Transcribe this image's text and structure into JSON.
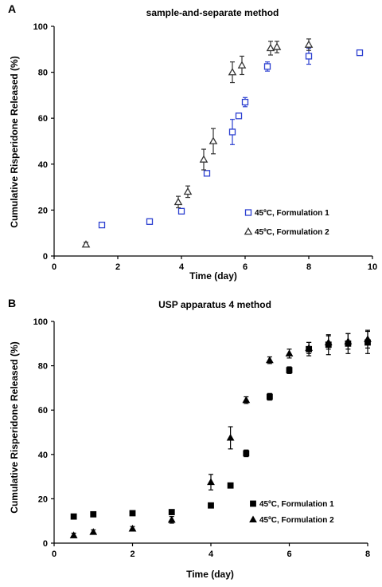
{
  "chart_data": [
    {
      "type": "scatter",
      "panel": "A",
      "title": "sample-and-separate method",
      "xlabel": "Time (day)",
      "ylabel": "Cumulative Risperidone Released (%)",
      "xlim": [
        0,
        10
      ],
      "ylim": [
        0,
        100
      ],
      "xticks": [
        0,
        2,
        4,
        6,
        8,
        10
      ],
      "yticks": [
        0,
        20,
        40,
        60,
        80,
        100
      ],
      "grid": false,
      "legend_position": "bottom-right",
      "series": [
        {
          "name": "45ºC, Formulation 1",
          "marker": "square-open",
          "color": "#2b3fd0",
          "x": [
            1.5,
            3,
            4,
            4.8,
            5.6,
            5.8,
            6,
            6.7,
            8,
            9.6
          ],
          "y": [
            13.5,
            15,
            19.5,
            36,
            54,
            61,
            67,
            82.5,
            87,
            88.5
          ],
          "err": [
            0.8,
            0.8,
            1.0,
            0.8,
            5.5,
            1.0,
            2.0,
            2.0,
            3.5,
            1.0
          ]
        },
        {
          "name": "45ºC, Formulation 2",
          "marker": "triangle-open",
          "color": "#333333",
          "x": [
            1,
            3.9,
            4.2,
            4.7,
            5,
            5.6,
            5.9,
            6.8,
            7,
            8
          ],
          "y": [
            5,
            23.5,
            28,
            42,
            50,
            80,
            83,
            90.5,
            91,
            92
          ],
          "err": [
            1.0,
            2.5,
            2.5,
            4.5,
            5.5,
            4.5,
            4.0,
            3.0,
            2.5,
            2.5
          ]
        }
      ]
    },
    {
      "type": "scatter",
      "panel": "B",
      "title": "USP apparatus 4 method",
      "xlabel": "Time (day)",
      "ylabel": "Cumulative Risperidone Released (%)",
      "xlim": [
        0,
        8
      ],
      "ylim": [
        0,
        100
      ],
      "xticks": [
        0,
        2,
        4,
        6,
        8
      ],
      "yticks": [
        0,
        20,
        40,
        60,
        80,
        100
      ],
      "grid": false,
      "legend_position": "bottom-right",
      "series": [
        {
          "name": "45ºC, Formulation 1",
          "marker": "square-filled",
          "color": "#000000",
          "x": [
            0.5,
            1,
            2,
            3,
            4,
            4.5,
            4.9,
            5.5,
            6,
            6.5,
            7,
            7.5,
            8
          ],
          "y": [
            12,
            13,
            13.5,
            14,
            17,
            26,
            40.5,
            66,
            78,
            87.5,
            89.5,
            90,
            90.5
          ],
          "err": [
            0.8,
            0.8,
            0.8,
            0.8,
            0.8,
            0.8,
            1.5,
            1.5,
            1.5,
            3.0,
            4.5,
            4.5,
            5.0
          ]
        },
        {
          "name": "45ºC, Formulation 2",
          "marker": "triangle-filled",
          "color": "#000000",
          "x": [
            0.5,
            1,
            2,
            3,
            4,
            4.5,
            4.9,
            5.5,
            6,
            6.5,
            7,
            7.5,
            8
          ],
          "y": [
            3.5,
            5,
            6.5,
            10.5,
            27.5,
            47.5,
            64.5,
            82.5,
            85.5,
            88,
            90.5,
            91,
            92
          ],
          "err": [
            1.0,
            1.0,
            1.0,
            1.5,
            3.5,
            5.0,
            1.5,
            1.5,
            2.0,
            2.5,
            3.0,
            3.5,
            4.0
          ]
        }
      ]
    }
  ]
}
